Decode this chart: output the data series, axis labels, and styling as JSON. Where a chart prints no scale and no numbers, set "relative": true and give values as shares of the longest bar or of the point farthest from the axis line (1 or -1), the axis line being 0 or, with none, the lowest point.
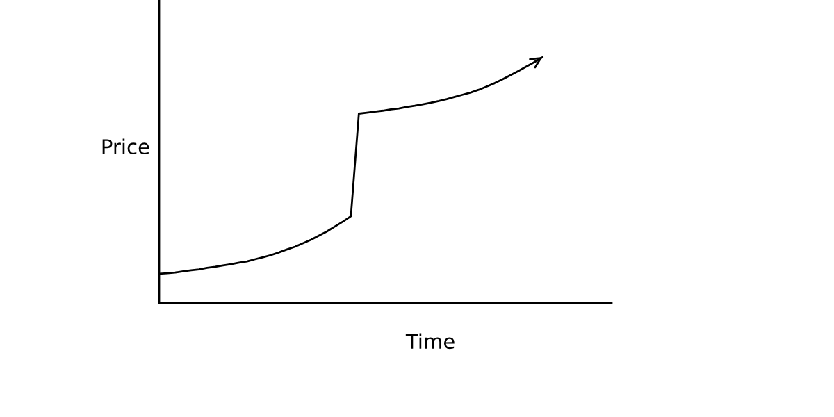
{
  "chart_data": {
    "type": "line",
    "relative": true,
    "xlabel": "Time",
    "ylabel": "Price",
    "legend": false,
    "marker": "none",
    "line_style": "solid",
    "categories": [
      null,
      null,
      null,
      null,
      null,
      null,
      null,
      null,
      null,
      null,
      null,
      null,
      null,
      null,
      null,
      null,
      null,
      null,
      null,
      null,
      null,
      null,
      null,
      null,
      null,
      null,
      null,
      null,
      null,
      null,
      null,
      null,
      null,
      null,
      null,
      null,
      null,
      null,
      null,
      null,
      null,
      null,
      null,
      null,
      null,
      null,
      null,
      null,
      null
    ],
    "series": [
      {
        "color": "#000000",
        "values": [
          0.119,
          0.121,
          0.124,
          0.129,
          0.133,
          0.137,
          0.143,
          0.147,
          0.153,
          0.158,
          0.164,
          0.169,
          0.178,
          0.186,
          0.195,
          0.206,
          0.218,
          0.229,
          0.243,
          0.257,
          0.274,
          0.291,
          0.311,
          0.331,
          0.353,
          0.77,
          0.774,
          0.778,
          0.782,
          0.787,
          0.791,
          0.797,
          0.802,
          0.808,
          0.814,
          0.821,
          0.829,
          0.838,
          0.847,
          0.856,
          0.867,
          0.88,
          0.894,
          0.91,
          0.927,
          0.944,
          0.962,
          0.98,
          1
        ]
      }
    ]
  }
}
